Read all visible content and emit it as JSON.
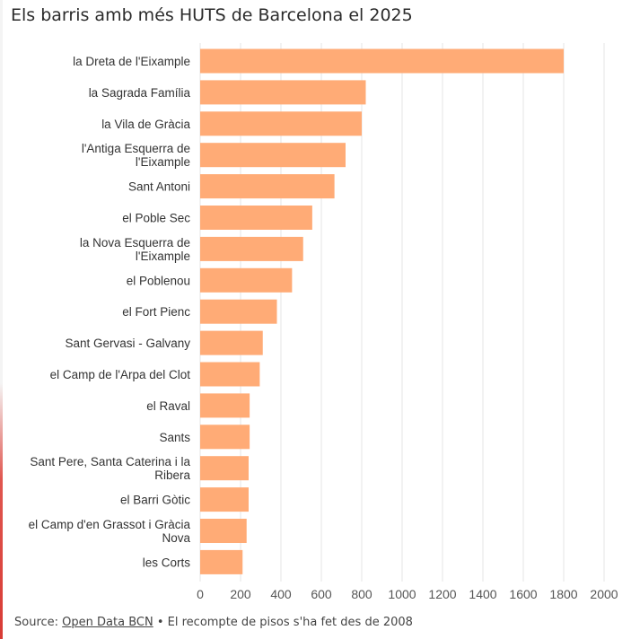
{
  "title": "Els barris amb més HUTS de Barcelona el 2025",
  "footer": {
    "source_label": "Source:",
    "source_link": "Open Data BCN",
    "separator": "•",
    "note": "El recompte de pisos s'ha fet des de 2008"
  },
  "colors": {
    "bar": "#ffab76",
    "grid": "#e6e6e6",
    "text": "#333333"
  },
  "chart_data": {
    "type": "bar",
    "orientation": "horizontal",
    "title": "Els barris amb més HUTS de Barcelona el 2025",
    "categories": [
      [
        "la Dreta de l'Eixample"
      ],
      [
        "la Sagrada Família"
      ],
      [
        "la Vila de Gràcia"
      ],
      [
        "l'Antiga Esquerra de",
        "l'Eixample"
      ],
      [
        "Sant Antoni"
      ],
      [
        "el Poble Sec"
      ],
      [
        "la Nova Esquerra de",
        "l'Eixample"
      ],
      [
        "el Poblenou"
      ],
      [
        "el Fort Pienc"
      ],
      [
        "Sant Gervasi - Galvany"
      ],
      [
        "el Camp de l'Arpa del Clot"
      ],
      [
        "el Raval"
      ],
      [
        "Sants"
      ],
      [
        "Sant Pere, Santa Caterina i la",
        "Ribera"
      ],
      [
        "el Barri Gòtic"
      ],
      [
        "el Camp d'en Grassot i Gràcia",
        "Nova"
      ],
      [
        "les Corts"
      ]
    ],
    "values": [
      1800,
      820,
      800,
      720,
      665,
      555,
      510,
      455,
      380,
      310,
      295,
      245,
      245,
      240,
      240,
      230,
      210
    ],
    "xlim": [
      0,
      2000
    ],
    "xticks": [
      0,
      200,
      400,
      600,
      800,
      1000,
      1200,
      1400,
      1600,
      1800,
      2000
    ],
    "grid": true,
    "legend": "none"
  }
}
